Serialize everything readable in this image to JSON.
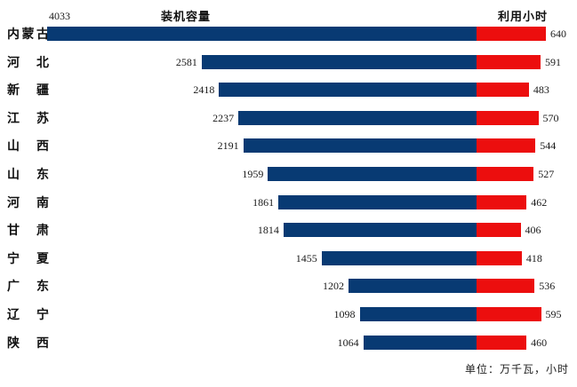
{
  "titles": {
    "left": "装机容量",
    "right": "利用小时"
  },
  "unit_note": "单位：万千瓦，小时",
  "colors": {
    "capacity_bar": "#083A73",
    "hours_bar": "#EC0E0E"
  },
  "chart_data": {
    "type": "bar",
    "orientation": "horizontal",
    "layout": "paired-stacked-from-common-baseline",
    "title_left": "装机容量",
    "title_right": "利用小时",
    "unit_note": "单位：万千瓦，小时",
    "axis": "hidden",
    "grid": "off",
    "value_labels": "on",
    "categories": [
      "内蒙古",
      "河北",
      "新疆",
      "江苏",
      "山西",
      "山东",
      "河南",
      "甘肃",
      "宁夏",
      "广东",
      "辽宁",
      "陕西"
    ],
    "series": [
      {
        "name": "装机容量",
        "unit": "万千瓦",
        "color": "#083A73",
        "side": "left",
        "values": [
          4033,
          2581,
          2418,
          2237,
          2191,
          1959,
          1861,
          1814,
          1455,
          1202,
          1098,
          1064
        ]
      },
      {
        "name": "利用小时",
        "unit": "小时",
        "color": "#EC0E0E",
        "side": "right",
        "values": [
          640,
          591,
          483,
          570,
          544,
          527,
          462,
          406,
          418,
          536,
          595,
          460
        ]
      }
    ]
  }
}
